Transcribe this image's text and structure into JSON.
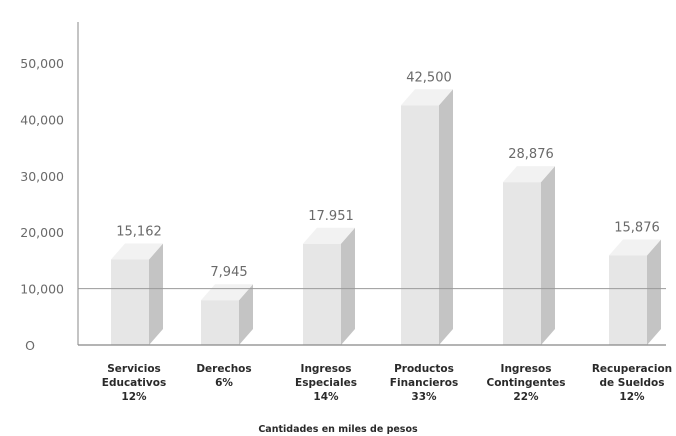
{
  "chart_data": {
    "type": "bar",
    "style": "3d-column",
    "xlabel": "Cantidades en miles de pesos",
    "ylim": [
      0,
      55000
    ],
    "yticks": [
      {
        "value": 0,
        "label": "O"
      },
      {
        "value": 10000,
        "label": "10,000"
      },
      {
        "value": 20000,
        "label": "20,000"
      },
      {
        "value": 30000,
        "label": "30,000"
      },
      {
        "value": 40000,
        "label": "40,000"
      },
      {
        "value": 50000,
        "label": "50,000"
      }
    ],
    "categories": [
      {
        "lines": [
          "Servicios",
          "Educativos",
          "12%"
        ]
      },
      {
        "lines": [
          "Derechos",
          "6%"
        ]
      },
      {
        "lines": [
          "Ingresos",
          "Especiales",
          "14%"
        ]
      },
      {
        "lines": [
          "Productos",
          "Financieros",
          "33%"
        ]
      },
      {
        "lines": [
          "Ingresos",
          "Contingentes",
          "22%"
        ]
      },
      {
        "lines": [
          "Recuperacion",
          "de Sueldos",
          "12%"
        ]
      }
    ],
    "values": [
      15162,
      7945,
      17951,
      42500,
      28876,
      15876
    ],
    "value_labels": [
      "15,162",
      "7,945",
      "17.951",
      "42,500",
      "28,876",
      "15,876"
    ],
    "reference_line": 10000,
    "colors": {
      "front": "#e6e6e6",
      "side": "#c4c4c4",
      "top": "#f2f2f2",
      "axis": "#888888",
      "reference": "#9a9a9a"
    }
  }
}
